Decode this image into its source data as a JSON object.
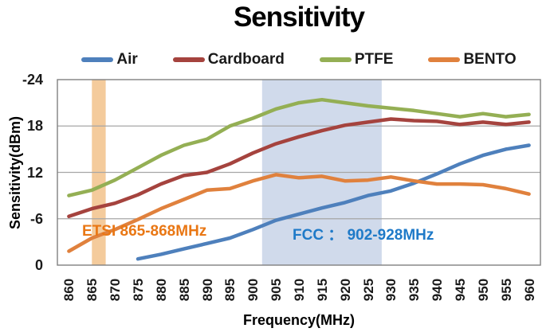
{
  "title": "Sensitivity",
  "legend": {
    "items": [
      {
        "label": "Air",
        "color": "#4E80BC"
      },
      {
        "label": "Cardboard",
        "color": "#A5433E"
      },
      {
        "label": "PTFE",
        "color": "#94AF54"
      },
      {
        "label": "BENTO",
        "color": "#E0813D"
      }
    ]
  },
  "y_axis": {
    "title": "Sensitivity(dBm)",
    "tick_labels": [
      "-24",
      "18",
      "12",
      "-6",
      "0"
    ]
  },
  "x_axis": {
    "title": "Frequency(MHz)",
    "tick_labels": [
      "860",
      "865",
      "870",
      "875",
      "880",
      "885",
      "890",
      "895",
      "900",
      "905",
      "910",
      "915",
      "920",
      "925",
      "930",
      "935",
      "940",
      "945",
      "950",
      "955",
      "960"
    ]
  },
  "annotations": {
    "etsi": {
      "text": "ETSI 865-868MHz",
      "color": "#E97714",
      "band_color": "#F4CB9C",
      "band_range_mhz": [
        865,
        868
      ]
    },
    "fcc": {
      "text": "FCC ： 902-928MHz",
      "color": "#1F7AC8",
      "band_color": "#D0DAEB",
      "band_range_mhz": [
        902,
        928
      ]
    }
  },
  "chart_data": {
    "type": "line",
    "title": "Sensitivity",
    "xlabel": "Frequency(MHz)",
    "ylabel": "Sensitivity(dBm)",
    "x": [
      860,
      865,
      870,
      875,
      880,
      885,
      890,
      895,
      900,
      905,
      910,
      915,
      920,
      925,
      930,
      935,
      940,
      945,
      950,
      955,
      960
    ],
    "x_step": 5,
    "ylim": [
      0,
      -24
    ],
    "y_grid_step": -6,
    "grid": true,
    "legend_position": "top",
    "series": [
      {
        "name": "Air",
        "color": "#4E80BC",
        "values": [
          null,
          null,
          null,
          -0.8,
          -1.4,
          -2.1,
          -2.8,
          -3.5,
          -4.6,
          -5.8,
          -6.6,
          -7.4,
          -8.1,
          -9.0,
          -9.6,
          -10.6,
          -11.8,
          -13.1,
          -14.2,
          -15.0,
          -15.5
        ]
      },
      {
        "name": "Cardboard",
        "color": "#A5433E",
        "values": [
          -6.3,
          -7.3,
          -8.0,
          -9.1,
          -10.5,
          -11.6,
          -12.0,
          -13.1,
          -14.5,
          -15.7,
          -16.6,
          -17.4,
          -18.1,
          -18.5,
          -18.9,
          -18.7,
          -18.6,
          -18.2,
          -18.5,
          -18.2,
          -18.5
        ]
      },
      {
        "name": "PTFE",
        "color": "#94AF54",
        "values": [
          -9.0,
          -9.7,
          -11.0,
          -12.6,
          -14.2,
          -15.5,
          -16.3,
          -18.0,
          -19.0,
          -20.2,
          -21.0,
          -21.4,
          -21.0,
          -20.6,
          -20.3,
          -20.0,
          -19.6,
          -19.2,
          -19.6,
          -19.2,
          -19.5
        ]
      },
      {
        "name": "BENTO",
        "color": "#E0813D",
        "values": [
          -1.8,
          -3.5,
          -4.6,
          -5.9,
          -7.3,
          -8.5,
          -9.7,
          -9.9,
          -10.9,
          -11.7,
          -11.3,
          -11.5,
          -10.9,
          -11.0,
          -11.4,
          -10.9,
          -10.5,
          -10.5,
          -10.4,
          -9.9,
          -9.2
        ]
      }
    ],
    "grid_color": "#A6A6A6",
    "border_color": "#808080"
  }
}
